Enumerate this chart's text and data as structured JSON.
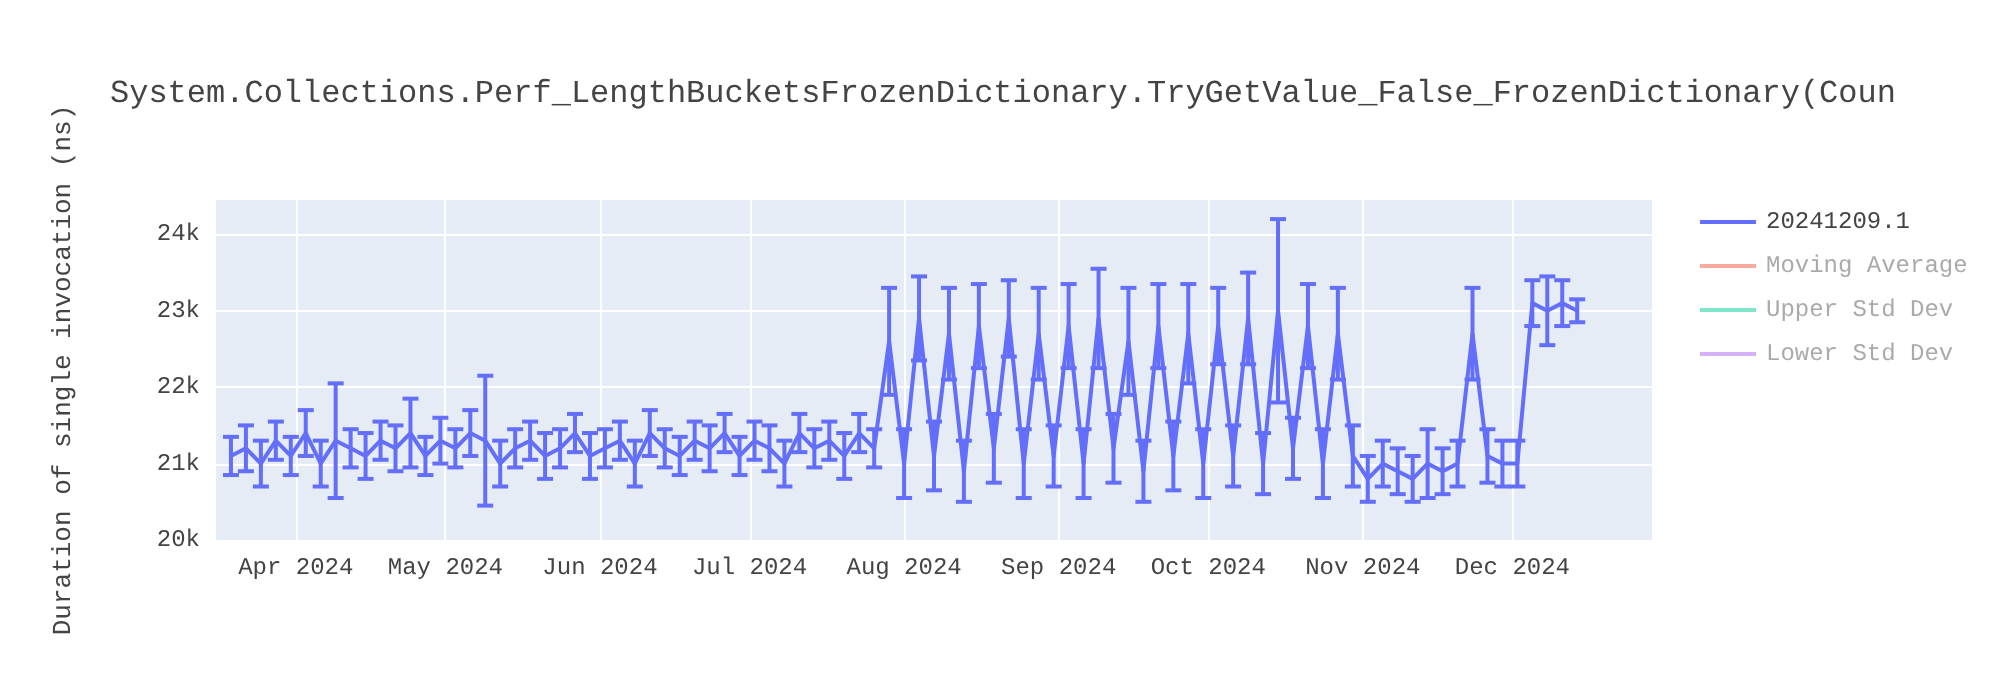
{
  "chart_data": {
    "type": "line",
    "title": "System.Collections.Perf_LengthBucketsFrozenDictionary.TryGetValue_False_FrozenDictionary(Coun",
    "ylabel": "Duration of single invocation (ns)",
    "xlim": [
      "2024-03-16",
      "2024-12-29"
    ],
    "xticks": [
      {
        "value": "2024-04-01",
        "label": "Apr 2024"
      },
      {
        "value": "2024-05-01",
        "label": "May 2024"
      },
      {
        "value": "2024-06-01",
        "label": "Jun 2024"
      },
      {
        "value": "2024-07-01",
        "label": "Jul 2024"
      },
      {
        "value": "2024-08-01",
        "label": "Aug 2024"
      },
      {
        "value": "2024-09-01",
        "label": "Sep 2024"
      },
      {
        "value": "2024-10-01",
        "label": "Oct 2024"
      },
      {
        "value": "2024-11-01",
        "label": "Nov 2024"
      },
      {
        "value": "2024-12-01",
        "label": "Dec 2024"
      }
    ],
    "ylim": [
      20000,
      24450
    ],
    "yticks": [
      {
        "value": 20000,
        "label": "20k"
      },
      {
        "value": 21000,
        "label": "21k"
      },
      {
        "value": 22000,
        "label": "22k"
      },
      {
        "value": 23000,
        "label": "23k"
      },
      {
        "value": 24000,
        "label": "24k"
      }
    ],
    "grid": true,
    "legend": "top right",
    "marker": "none",
    "line_style": "solid",
    "x": [
      "2024-03-19",
      "2024-03-22",
      "2024-03-25",
      "2024-03-28",
      "2024-03-31",
      "2024-04-03",
      "2024-04-06",
      "2024-04-09",
      "2024-04-12",
      "2024-04-15",
      "2024-04-18",
      "2024-04-21",
      "2024-04-24",
      "2024-04-27",
      "2024-04-30",
      "2024-05-03",
      "2024-05-06",
      "2024-05-09",
      "2024-05-12",
      "2024-05-15",
      "2024-05-18",
      "2024-05-21",
      "2024-05-24",
      "2024-05-27",
      "2024-05-30",
      "2024-06-02",
      "2024-06-05",
      "2024-06-08",
      "2024-06-11",
      "2024-06-14",
      "2024-06-17",
      "2024-06-20",
      "2024-06-23",
      "2024-06-26",
      "2024-06-29",
      "2024-07-02",
      "2024-07-05",
      "2024-07-08",
      "2024-07-11",
      "2024-07-14",
      "2024-07-17",
      "2024-07-20",
      "2024-07-23",
      "2024-07-26",
      "2024-07-29",
      "2024-08-01",
      "2024-08-04",
      "2024-08-07",
      "2024-08-10",
      "2024-08-13",
      "2024-08-16",
      "2024-08-19",
      "2024-08-22",
      "2024-08-25",
      "2024-08-28",
      "2024-08-31",
      "2024-09-03",
      "2024-09-06",
      "2024-09-09",
      "2024-09-12",
      "2024-09-15",
      "2024-09-18",
      "2024-09-21",
      "2024-09-24",
      "2024-09-27",
      "2024-09-30",
      "2024-10-03",
      "2024-10-06",
      "2024-10-09",
      "2024-10-12",
      "2024-10-15",
      "2024-10-18",
      "2024-10-21",
      "2024-10-24",
      "2024-10-27",
      "2024-10-30",
      "2024-11-02",
      "2024-11-05",
      "2024-11-08",
      "2024-11-11",
      "2024-11-14",
      "2024-11-17",
      "2024-11-20",
      "2024-11-23",
      "2024-11-26",
      "2024-11-29",
      "2024-12-02",
      "2024-12-05",
      "2024-12-08",
      "2024-12-11",
      "2024-12-14"
    ],
    "series": [
      {
        "name": "20241209.1",
        "color": "#636efa",
        "values": [
          21100,
          21200,
          21000,
          21300,
          21100,
          21400,
          21000,
          21300,
          21200,
          21100,
          21300,
          21200,
          21400,
          21100,
          21300,
          21200,
          21400,
          21300,
          21000,
          21200,
          21300,
          21100,
          21200,
          21400,
          21100,
          21200,
          21300,
          21000,
          21400,
          21200,
          21100,
          21300,
          21200,
          21400,
          21100,
          21300,
          21200,
          21000,
          21400,
          21200,
          21300,
          21100,
          21400,
          21200,
          22600,
          21000,
          22900,
          21100,
          22700,
          20900,
          22800,
          21200,
          22900,
          21000,
          22700,
          21100,
          22800,
          21000,
          22900,
          21200,
          22600,
          20900,
          22800,
          21100,
          22700,
          21000,
          22800,
          21100,
          22900,
          21000,
          23000,
          21200,
          22800,
          21000,
          22700,
          21100,
          20800,
          21000,
          20900,
          20800,
          21000,
          20900,
          21000,
          22700,
          21100,
          21000,
          21000,
          23100,
          23000,
          23100,
          23000
        ],
        "errors": [
          250,
          300,
          300,
          250,
          250,
          300,
          300,
          750,
          250,
          300,
          250,
          300,
          450,
          250,
          300,
          250,
          300,
          850,
          300,
          250,
          250,
          300,
          250,
          250,
          300,
          250,
          250,
          300,
          300,
          250,
          250,
          250,
          300,
          250,
          250,
          250,
          300,
          300,
          250,
          250,
          250,
          300,
          250,
          250,
          700,
          450,
          550,
          450,
          600,
          400,
          550,
          450,
          500,
          450,
          600,
          400,
          550,
          450,
          650,
          450,
          700,
          400,
          550,
          450,
          650,
          450,
          500,
          400,
          600,
          400,
          1200,
          400,
          550,
          450,
          600,
          400,
          300,
          300,
          300,
          300,
          450,
          300,
          300,
          600,
          350,
          300,
          300,
          300,
          450,
          300,
          150
        ]
      },
      {
        "name": "Moving Average",
        "color": "#f7aa9d",
        "values": [
          null,
          null,
          null,
          null,
          null,
          null,
          null,
          null,
          null,
          null,
          null,
          null,
          null,
          null,
          null,
          null,
          null,
          null,
          null,
          null,
          null,
          null,
          null,
          null,
          null,
          null,
          null,
          null,
          null,
          null,
          null,
          null,
          null,
          null,
          null,
          null,
          null,
          null,
          null,
          null,
          null,
          null,
          null,
          null,
          null,
          null,
          null,
          null,
          null,
          null,
          null,
          null,
          null,
          null,
          null,
          null,
          null,
          null,
          null,
          null,
          null,
          null,
          null,
          null,
          null,
          null,
          null,
          null,
          null,
          null,
          null,
          null,
          null,
          null,
          null,
          null,
          null,
          null,
          null,
          null,
          null,
          null,
          null,
          null,
          null,
          null,
          null,
          null,
          null,
          null,
          null
        ]
      },
      {
        "name": "Upper Std Dev",
        "color": "#80e6ca",
        "values": [
          null,
          null,
          null,
          null,
          null,
          null,
          null,
          null,
          null,
          null,
          null,
          null,
          null,
          null,
          null,
          null,
          null,
          null,
          null,
          null,
          null,
          null,
          null,
          null,
          null,
          null,
          null,
          null,
          null,
          null,
          null,
          null,
          null,
          null,
          null,
          null,
          null,
          null,
          null,
          null,
          null,
          null,
          null,
          null,
          null,
          null,
          null,
          null,
          null,
          null,
          null,
          null,
          null,
          null,
          null,
          null,
          null,
          null,
          null,
          null,
          null,
          null,
          null,
          null,
          null,
          null,
          null,
          null,
          null,
          null,
          null,
          null,
          null,
          null,
          null,
          null,
          null,
          null,
          null,
          null,
          null,
          null,
          null,
          null,
          null,
          null,
          null,
          null,
          null,
          null,
          null
        ]
      },
      {
        "name": "Lower Std Dev",
        "color": "#d5b1fc",
        "values": [
          null,
          null,
          null,
          null,
          null,
          null,
          null,
          null,
          null,
          null,
          null,
          null,
          null,
          null,
          null,
          null,
          null,
          null,
          null,
          null,
          null,
          null,
          null,
          null,
          null,
          null,
          null,
          null,
          null,
          null,
          null,
          null,
          null,
          null,
          null,
          null,
          null,
          null,
          null,
          null,
          null,
          null,
          null,
          null,
          null,
          null,
          null,
          null,
          null,
          null,
          null,
          null,
          null,
          null,
          null,
          null,
          null,
          null,
          null,
          null,
          null,
          null,
          null,
          null,
          null,
          null,
          null,
          null,
          null,
          null,
          null,
          null,
          null,
          null,
          null,
          null,
          null,
          null,
          null,
          null,
          null,
          null,
          null,
          null,
          null,
          null,
          null,
          null,
          null,
          null,
          null
        ]
      }
    ]
  }
}
